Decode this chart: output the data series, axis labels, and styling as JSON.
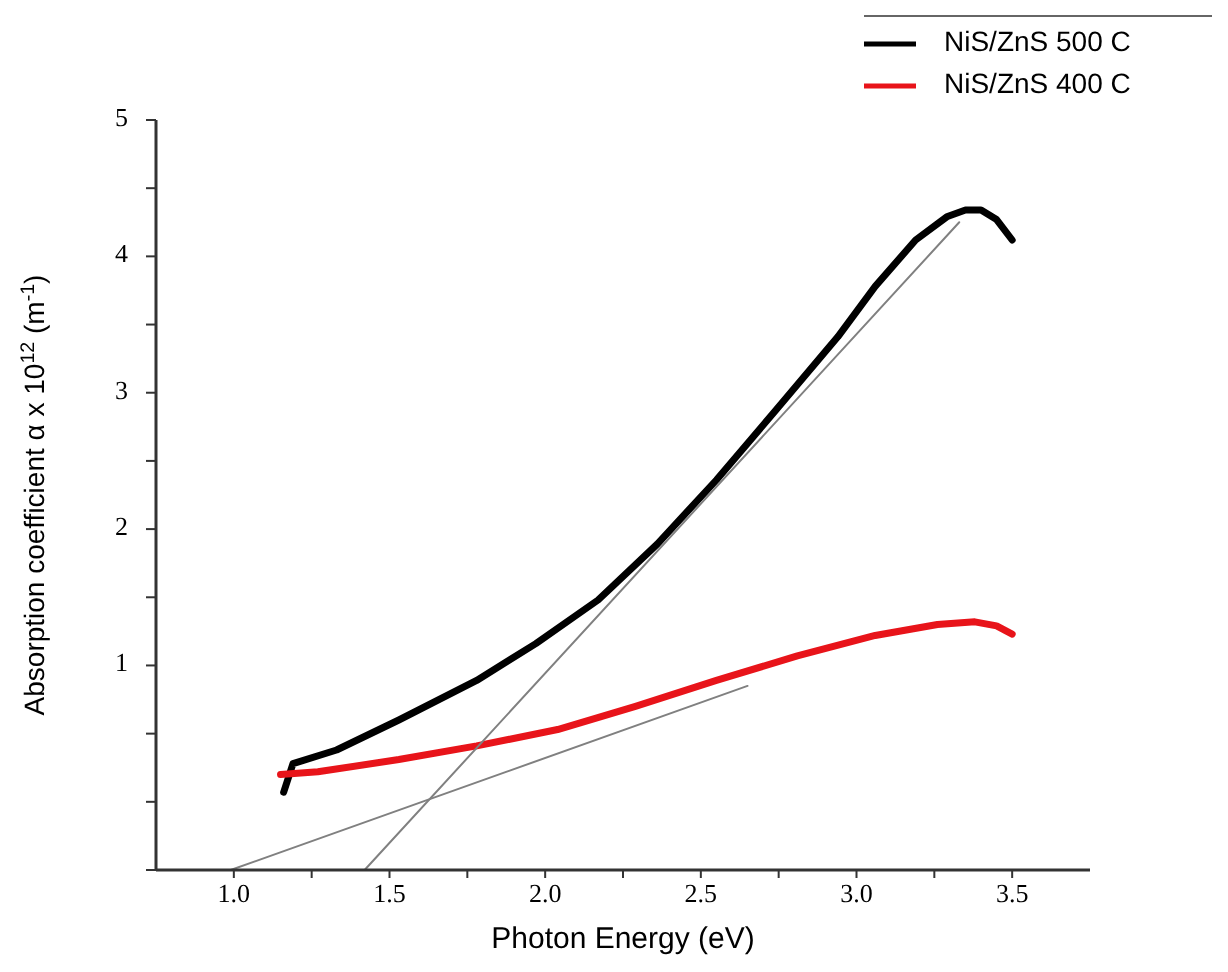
{
  "chart_data": {
    "type": "line",
    "xlabel": "Photon Energy (eV)",
    "ylabel": "Absorption coefficient α x 10$^{12}$ (m$^{-1}$)",
    "xlim": [
      0.75,
      3.75
    ],
    "ylim": [
      -0.5,
      5
    ],
    "xticks": [
      {
        "value": 1,
        "label": "1.0"
      },
      {
        "value": 1.25,
        "label": null
      },
      {
        "value": 1.5,
        "label": "1.5"
      },
      {
        "value": 1.75,
        "label": null
      },
      {
        "value": 2,
        "label": "2.0"
      },
      {
        "value": 2.25,
        "label": null
      },
      {
        "value": 2.5,
        "label": "2.5"
      },
      {
        "value": 2.75,
        "label": null
      },
      {
        "value": 3,
        "label": "3.0"
      },
      {
        "value": 3.25,
        "label": null
      },
      {
        "value": 3.5,
        "label": "3.5"
      }
    ],
    "yticks": [
      {
        "value": -0.5,
        "label": null
      },
      {
        "value": 0,
        "label": null
      },
      {
        "value": 0.5,
        "label": null
      },
      1,
      {
        "value": 1.5,
        "label": null
      },
      2,
      {
        "value": 2.5,
        "label": null
      },
      3,
      {
        "value": 3.5,
        "label": null
      },
      4,
      {
        "value": 4.5,
        "label": null
      },
      5
    ],
    "legend": "top right",
    "grid": false,
    "line_style": "solid",
    "series": [
      {
        "name": "NiS/ZnS 500 C",
        "color": "#000000",
        "x": [
          1.16,
          1.19,
          1.33,
          1.53,
          1.78,
          1.97,
          2.17,
          2.36,
          2.55,
          2.74,
          2.94,
          3.06,
          3.19,
          3.29,
          3.35,
          3.4,
          3.45,
          3.5
        ],
        "values": [
          0.07,
          0.28,
          0.38,
          0.6,
          0.89,
          1.16,
          1.48,
          1.89,
          2.36,
          2.87,
          3.41,
          3.78,
          4.12,
          4.29,
          4.34,
          4.34,
          4.27,
          4.12
        ]
      },
      {
        "name": "NiS/ZnS 400 C",
        "color": "#e8141a",
        "x": [
          1.15,
          1.27,
          1.53,
          1.78,
          2.04,
          2.29,
          2.55,
          2.81,
          3.06,
          3.26,
          3.38,
          3.45,
          3.5
        ],
        "values": [
          0.2,
          0.22,
          0.31,
          0.41,
          0.53,
          0.7,
          0.89,
          1.07,
          1.22,
          1.3,
          1.32,
          1.29,
          1.23
        ]
      },
      {
        "color": "#808080",
        "x": [
          1.42,
          3.33
        ],
        "values": [
          -0.5,
          4.25
        ]
      },
      {
        "color": "#808080",
        "x": [
          0.99,
          2.65
        ],
        "values": [
          -0.5,
          0.85
        ]
      }
    ]
  }
}
